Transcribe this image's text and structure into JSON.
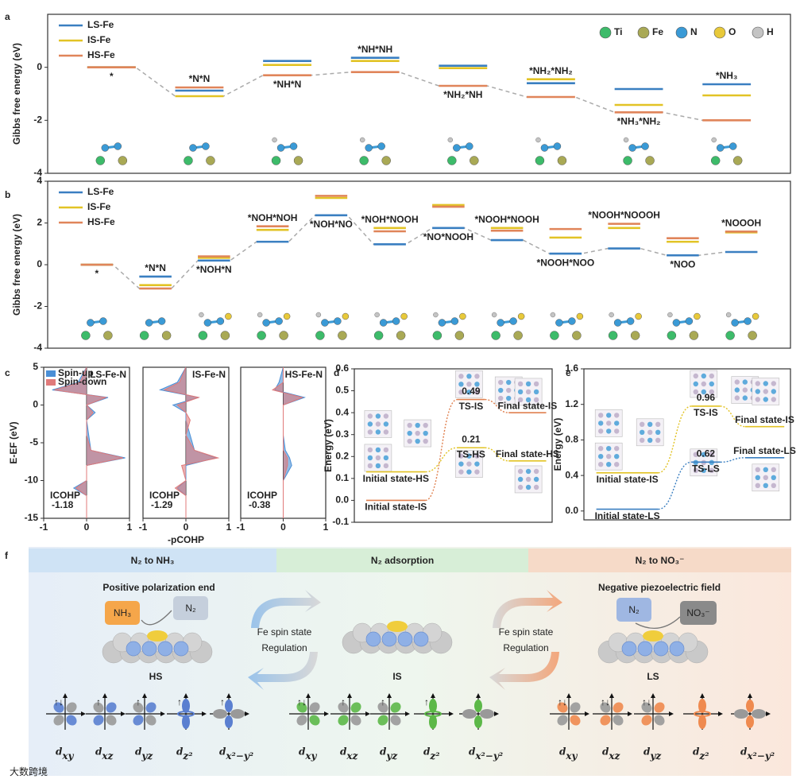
{
  "panel_letters": [
    "a",
    "b",
    "c",
    "d",
    "e",
    "f"
  ],
  "watermark": "大数跨境",
  "chart_data": [
    {
      "type": "levels",
      "ylabel": "Gibbs free energy (eV)",
      "ylim": [
        -4,
        2
      ],
      "yticks": [
        -4,
        -2,
        0
      ],
      "legend": "upper left",
      "categories": [
        "*",
        "*N*N",
        "*NH*N",
        "*NH*NH",
        "*NH₂*NH",
        "*NH₂*NH₂",
        "*NH₃*NH₂",
        "*NH₃"
      ],
      "category_color": "#e0804f",
      "series": [
        {
          "name": "LS-Fe",
          "color": "#3a7fc1",
          "values": [
            0,
            -0.88,
            0.24,
            0.36,
            0.06,
            -0.6,
            -0.82,
            -0.64
          ]
        },
        {
          "name": "IS-Fe",
          "color": "#e2c325",
          "values": [
            0,
            -1.09,
            0.09,
            0.24,
            -0.03,
            -0.45,
            -1.42,
            -1.06
          ]
        },
        {
          "name": "HS-Fe",
          "color": "#e0855a",
          "values": [
            0,
            -0.76,
            -0.3,
            -0.18,
            -0.7,
            -1.12,
            -1.7,
            -2.0
          ]
        }
      ],
      "atoms": [
        {
          "name": "Ti",
          "color": "#3dbb6a"
        },
        {
          "name": "Fe",
          "color": "#a9a955"
        },
        {
          "name": "N",
          "color": "#3a9ad6"
        },
        {
          "name": "O",
          "color": "#e8c93a"
        },
        {
          "name": "H",
          "color": "#c4c4c4"
        }
      ]
    },
    {
      "type": "levels",
      "ylabel": "Gibbs free energy (eV)",
      "ylim": [
        -4,
        4
      ],
      "yticks": [
        -4,
        -2,
        0,
        2,
        4
      ],
      "legend": "upper left",
      "categories": [
        "*",
        "*N*N",
        "*NOH*N",
        "*NOH*NOH",
        "*NOH*NO",
        "*NOH*NOOH",
        "*NO*NOOH",
        "*NOOH*NOOH",
        "*NOOH*NOO",
        "*NOOH*NOOOH",
        "*NOO",
        "*NOOOH"
      ],
      "category_color": "#3a7fc1",
      "series": [
        {
          "name": "LS-Fe",
          "color": "#3a7fc1",
          "values": [
            0,
            -0.57,
            0.2,
            1.1,
            2.37,
            0.98,
            1.76,
            1.18,
            0.53,
            0.78,
            0.45,
            0.61
          ]
        },
        {
          "name": "IS-Fe",
          "color": "#e2c325",
          "values": [
            0,
            -0.98,
            0.33,
            1.67,
            3.2,
            1.76,
            2.86,
            1.76,
            1.3,
            1.76,
            1.1,
            1.55
          ]
        },
        {
          "name": "HS-Fe",
          "color": "#e0855a",
          "values": [
            0,
            -1.14,
            0.4,
            1.84,
            3.3,
            1.6,
            2.78,
            1.63,
            1.71,
            1.96,
            1.27,
            1.59
          ]
        }
      ]
    },
    {
      "type": "cohp",
      "title": "LS-Fe-N",
      "ylabel": "E-EF (eV)",
      "ylim": [
        -15,
        5
      ],
      "yticks": [
        -15,
        -10,
        -5,
        0,
        5
      ],
      "xlim": [
        -1,
        1
      ],
      "xticks": [
        -1,
        0,
        1
      ],
      "legend": "upper left",
      "icohp_label": "ICOHP",
      "icohp": -1.18,
      "energies": [
        -15,
        -12,
        -11,
        -10,
        -8,
        -7,
        -6,
        -4,
        -2,
        -1,
        0,
        1,
        2,
        3,
        5
      ],
      "series": [
        {
          "name": "Spin-up",
          "color": "#4a8fd6",
          "values": [
            0,
            0,
            -0.3,
            0,
            0,
            0.9,
            0.1,
            0.05,
            0,
            0.2,
            0,
            0.5,
            -0.8,
            -0.2,
            0
          ]
        },
        {
          "name": "Spin-down",
          "color": "#e07a7a",
          "values": [
            0,
            0,
            -0.25,
            0,
            0,
            0.85,
            0.1,
            0,
            0,
            0.15,
            0,
            0.45,
            -0.75,
            -0.15,
            0
          ]
        }
      ]
    },
    {
      "type": "cohp",
      "title": "IS-Fe-N",
      "xlabel": "-pCOHP",
      "ylim": [
        -15,
        5
      ],
      "xlim": [
        -1,
        1
      ],
      "xticks": [
        -1,
        0,
        1
      ],
      "icohp_label": "ICOHP",
      "icohp": -1.29,
      "energies": [
        -15,
        -12,
        -11,
        -10,
        -8,
        -7,
        -6,
        -4,
        -2,
        -1,
        0,
        1,
        2,
        3,
        5
      ],
      "series": [
        {
          "color": "#4a8fd6",
          "values": [
            0,
            0,
            -0.2,
            0,
            0,
            0.7,
            0.2,
            0.1,
            0,
            0,
            -0.3,
            0.3,
            -0.6,
            -0.2,
            0
          ]
        },
        {
          "color": "#e07a7a",
          "values": [
            0,
            0,
            -0.25,
            0,
            -0.1,
            0.75,
            0.2,
            0,
            0.1,
            0,
            -0.2,
            0.3,
            -0.5,
            -0.15,
            0
          ]
        }
      ]
    },
    {
      "type": "cohp",
      "title": "HS-Fe-N",
      "ylim": [
        -15,
        5
      ],
      "xlim": [
        -1,
        1
      ],
      "xticks": [
        -1,
        0,
        1
      ],
      "icohp_label": "ICOHP",
      "icohp": -0.38,
      "energies": [
        -15,
        -12,
        -11,
        -10,
        -8,
        -7,
        -6,
        -4,
        -2,
        -1,
        0,
        1,
        2,
        3,
        5
      ],
      "series": [
        {
          "color": "#4a8fd6",
          "values": [
            0,
            0,
            0,
            0,
            0.2,
            0.15,
            0.05,
            0,
            0,
            0,
            0,
            0.5,
            -0.2,
            -0.1,
            0
          ]
        },
        {
          "color": "#e07a7a",
          "values": [
            0,
            0,
            0,
            0,
            0.1,
            0.1,
            0,
            0,
            0,
            0,
            0,
            0.45,
            -0.25,
            0,
            0
          ]
        }
      ]
    },
    {
      "type": "pathway",
      "ylabel": "Energy (eV)",
      "ylim": [
        -0.1,
        0.6
      ],
      "yticks": [
        -0.1,
        {
          "value": 0,
          "label": "0.0"
        },
        0.1,
        0.2,
        0.3,
        0.4,
        0.5,
        0.6
      ],
      "series": [
        {
          "color": "#e0804f",
          "states": [
            "Initial state-IS",
            "TS-IS",
            "Final state-IS"
          ],
          "values": [
            0,
            0.46,
            0.4
          ],
          "barrier": 0.49
        },
        {
          "color": "#e2c325",
          "states": [
            "Initial state-HS",
            "TS-HS",
            "Final state-HS"
          ],
          "values": [
            0.13,
            0.24,
            0.18
          ],
          "barrier": 0.21
        }
      ]
    },
    {
      "type": "pathway",
      "ylabel": "Energy (eV)",
      "ylim": [
        -0.1,
        1.6
      ],
      "yticks": [
        {
          "value": 0,
          "label": "0.0"
        },
        0.4,
        0.8,
        1.2,
        1.6
      ],
      "series": [
        {
          "color": "#e2c325",
          "states": [
            "Initial state-IS",
            "TS-IS",
            "Final state-IS"
          ],
          "values": [
            0.43,
            1.18,
            0.95
          ],
          "barrier": 0.96
        },
        {
          "color": "#3a7fc1",
          "states": [
            "Initial state-LS",
            "TS-LS",
            "Final state-LS"
          ],
          "values": [
            0.02,
            0.55,
            0.6
          ],
          "barrier": 0.62
        }
      ]
    }
  ],
  "diagram": {
    "sections": [
      {
        "title": "N₂ to NH₃",
        "color": "#3a6fc8"
      },
      {
        "title": "N₂ adsorption",
        "color": "#3f9a35"
      },
      {
        "title": "N₂ to NO₃⁻",
        "color": "#e07a3a"
      }
    ],
    "left": {
      "heading": "Positive polarization end",
      "product": "NH₃",
      "reactant": "N₂",
      "state": "HS"
    },
    "center": {
      "state": "IS"
    },
    "right": {
      "heading": "Negative piezoelectric field",
      "reactant": "N₂",
      "product": "NO₃⁻",
      "state": "LS"
    },
    "regulation_left": [
      "Fe spin state",
      "Regulation"
    ],
    "regulation_right": [
      "Fe spin state",
      "Regulation"
    ],
    "orbital_sets": [
      {
        "color": "#5a7fd0",
        "orbitals": [
          {
            "label": "dxy",
            "occupancy": "↑↓"
          },
          {
            "label": "dxz",
            "occupancy": "↑"
          },
          {
            "label": "dyz",
            "occupancy": "↑"
          },
          {
            "label": "dz²",
            "occupancy": "↑"
          },
          {
            "label": "dx²−y²",
            "occupancy": "↑"
          }
        ]
      },
      {
        "color": "#5cb848",
        "orbitals": [
          {
            "label": "dxy",
            "occupancy": "↑↓"
          },
          {
            "label": "dxz",
            "occupancy": "↑"
          },
          {
            "label": "dyz",
            "occupancy": "↑"
          },
          {
            "label": "dz²",
            "occupancy": "↑"
          },
          {
            "label": "dx²−y²",
            "occupancy": ""
          }
        ]
      },
      {
        "color": "#ef8a4f",
        "orbitals": [
          {
            "label": "dxy",
            "occupancy": "↑↓"
          },
          {
            "label": "dxz",
            "occupancy": "↑↓"
          },
          {
            "label": "dyz",
            "occupancy": "↑↓"
          },
          {
            "label": "dz²",
            "occupancy": ""
          },
          {
            "label": "dx²−y²",
            "occupancy": ""
          }
        ]
      }
    ]
  }
}
